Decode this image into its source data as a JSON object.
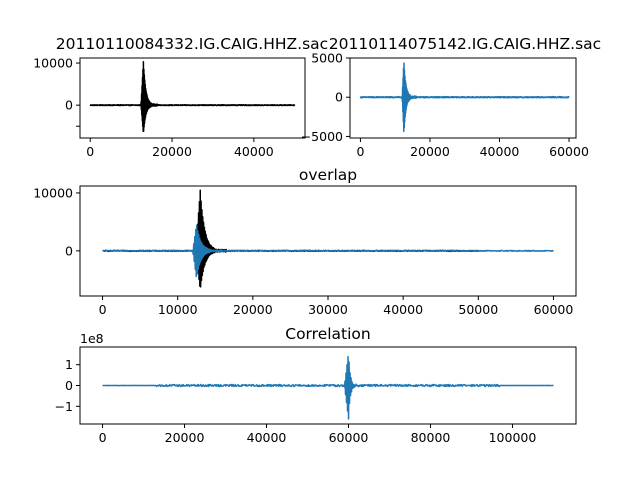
{
  "chart_data": [
    {
      "type": "line",
      "title": "20110110084332.IG.CAIG.HHZ.sac",
      "xlim": [
        -2500,
        52500
      ],
      "ylim": [
        -7800,
        11200
      ],
      "xticks": [
        0,
        20000,
        40000
      ],
      "xtick_labels": [
        "0",
        "20000",
        "40000"
      ],
      "yticks": [
        -5000,
        0,
        10000
      ],
      "ytick_labels": [
        "",
        "0",
        "10000"
      ],
      "y_offset_text": "",
      "series": [
        {
          "color": "#000000",
          "n_samples": 50000,
          "event_start": 12400,
          "event_peak_index": 13000,
          "peak_max": 10400,
          "peak_min": -6800,
          "coda_end": 16500,
          "noise_level": 150
        }
      ]
    },
    {
      "type": "line",
      "title": "20110114075142.IG.CAIG.HHZ.sac",
      "xlim": [
        -3000,
        62000
      ],
      "ylim": [
        -5200,
        5000
      ],
      "xticks": [
        0,
        20000,
        40000,
        60000
      ],
      "xtick_labels": [
        "0",
        "20000",
        "40000",
        "60000"
      ],
      "yticks": [
        -5000,
        0,
        5000
      ],
      "ytick_labels": [
        "−5000",
        "0",
        "5000"
      ],
      "y_offset_text": "",
      "series": [
        {
          "color": "#1f77b4",
          "n_samples": 60000,
          "event_start": 12000,
          "event_peak_index": 12500,
          "peak_max": 4600,
          "peak_min": -4700,
          "coda_end": 16000,
          "noise_level": 120
        }
      ]
    },
    {
      "type": "line",
      "title": "overlap",
      "xlim": [
        -3000,
        63000
      ],
      "ylim": [
        -7800,
        11200
      ],
      "xticks": [
        0,
        10000,
        20000,
        30000,
        40000,
        50000,
        60000
      ],
      "xtick_labels": [
        "0",
        "10000",
        "20000",
        "30000",
        "40000",
        "50000",
        "60000"
      ],
      "yticks": [
        0,
        10000
      ],
      "ytick_labels": [
        "0",
        "10000"
      ],
      "y_offset_text": "",
      "series": [
        {
          "color": "#000000",
          "n_samples": 50000,
          "event_start": 12400,
          "event_peak_index": 13000,
          "peak_max": 10400,
          "peak_min": -6800,
          "coda_end": 16500,
          "noise_level": 150
        },
        {
          "color": "#1f77b4",
          "n_samples": 60000,
          "event_start": 12000,
          "event_peak_index": 12500,
          "peak_max": 4600,
          "peak_min": -4700,
          "coda_end": 16000,
          "noise_level": 120
        }
      ]
    },
    {
      "type": "line",
      "title": "Correlation",
      "xlim": [
        -5500,
        115500
      ],
      "ylim": [
        -1.85,
        1.85
      ],
      "xticks": [
        0,
        20000,
        40000,
        60000,
        80000,
        100000
      ],
      "xtick_labels": [
        "0",
        "20000",
        "40000",
        "60000",
        "80000",
        "100000"
      ],
      "yticks": [
        -1,
        0,
        1
      ],
      "ytick_labels": [
        "−1",
        "0",
        "1"
      ],
      "y_offset_text": "1e8",
      "series": [
        {
          "color": "#1f77b4",
          "n_samples": 110000,
          "event_start": 59000,
          "event_peak_index": 60000,
          "peak_max": 1.55,
          "peak_min": -1.65,
          "coda_end": 62500,
          "noise_level": 0.08,
          "noise_band": [
            13000,
            97000
          ]
        }
      ]
    }
  ]
}
